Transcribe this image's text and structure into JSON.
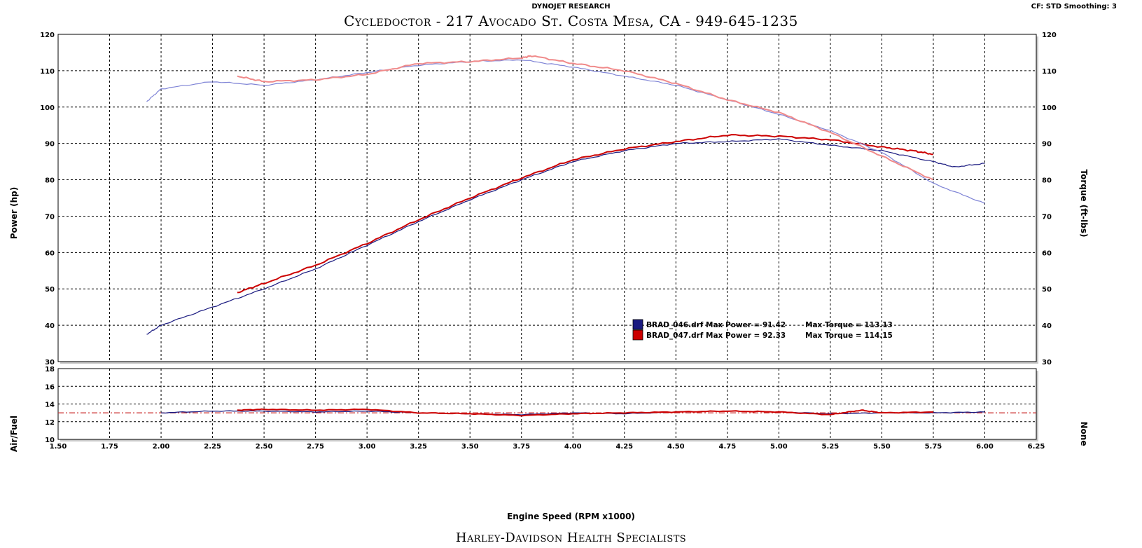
{
  "header": {
    "company": "DYNOJET RESEARCH",
    "title": "Cycledoctor - 217 Avocado St. Costa Mesa, CA - 949-645-1235",
    "settings": "CF: STD  Smoothing: 3"
  },
  "footer": {
    "text": "Harley-Davidson Health Specialists"
  },
  "colors": {
    "run1_power": "#1a1a80",
    "run1_torque": "#7f84d6",
    "run2_power": "#cc0000",
    "run2_torque": "#f08a8a",
    "reference_line": "#cc3333"
  },
  "chart_data": [
    {
      "type": "line",
      "ylabel": "Power (hp)",
      "y2label": "Torque (ft-lbs)",
      "xlim": [
        1.5,
        6.25
      ],
      "ylim": [
        30,
        120
      ],
      "y2lim": [
        30,
        120
      ],
      "grid": true,
      "x_ticks": [
        "1.50",
        "1.75",
        "2.00",
        "2.25",
        "2.50",
        "2.75",
        "3.00",
        "3.25",
        "3.50",
        "3.75",
        "4.00",
        "4.25",
        "4.50",
        "4.75",
        "5.00",
        "5.25",
        "5.50",
        "5.75",
        "6.00",
        "6.25"
      ],
      "y_ticks": [
        "30",
        "40",
        "50",
        "60",
        "70",
        "80",
        "90",
        "100",
        "110",
        "120"
      ],
      "legend": {
        "placement": "lower-center-right",
        "entries": [
          {
            "name": "BRAD_046.drf",
            "text": "BRAD_046.drf Max Power = 91.42",
            "torque_text": "Max Torque = 113.13",
            "color": "#1a1a80"
          },
          {
            "name": "BRAD_047.drf",
            "text": "BRAD_047.drf Max Power = 92.33",
            "torque_text": "Max Torque = 114.15",
            "color": "#cc0000"
          }
        ]
      },
      "series": [
        {
          "name": "BRAD_046.drf",
          "quantity": "power",
          "color": "#1a1a80",
          "x": [
            1.93,
            2.0,
            2.25,
            2.5,
            2.75,
            3.0,
            3.25,
            3.5,
            3.75,
            4.0,
            4.25,
            4.5,
            4.75,
            5.0,
            5.25,
            5.5,
            5.75,
            5.85,
            6.0
          ],
          "y": [
            37.5,
            40,
            45,
            50,
            55.5,
            62,
            68.5,
            74.5,
            80,
            85,
            88,
            90,
            90.5,
            91.2,
            89.5,
            88,
            85,
            83.5,
            84.5
          ]
        },
        {
          "name": "BRAD_047.drf",
          "quantity": "power",
          "color": "#cc0000",
          "x": [
            2.37,
            2.5,
            2.75,
            3.0,
            3.25,
            3.5,
            3.75,
            4.0,
            4.25,
            4.5,
            4.75,
            5.0,
            5.25,
            5.5,
            5.65,
            5.75
          ],
          "y": [
            49,
            51.5,
            56.5,
            62.5,
            69,
            75,
            80.5,
            85.5,
            88.5,
            90.5,
            92.3,
            92,
            91,
            89,
            88,
            87
          ]
        },
        {
          "name": "BRAD_046.drf",
          "quantity": "torque",
          "color": "#7f84d6",
          "x": [
            1.93,
            2.0,
            2.25,
            2.5,
            2.75,
            3.0,
            3.25,
            3.5,
            3.75,
            4.0,
            4.25,
            4.5,
            4.75,
            5.0,
            5.25,
            5.5,
            5.75,
            6.0
          ],
          "y": [
            101.5,
            105,
            107,
            106,
            107.5,
            109.5,
            111.5,
            112.5,
            113,
            111,
            108.5,
            106,
            102,
            98,
            93.5,
            87.5,
            79,
            73.5
          ]
        },
        {
          "name": "BRAD_047.drf",
          "quantity": "torque",
          "color": "#f08a8a",
          "x": [
            2.37,
            2.5,
            2.75,
            3.0,
            3.25,
            3.5,
            3.75,
            3.8,
            4.0,
            4.25,
            4.5,
            4.75,
            5.0,
            5.25,
            5.5,
            5.75
          ],
          "y": [
            108.5,
            107,
            107.5,
            109,
            112,
            112.5,
            113.5,
            114.1,
            112,
            110,
            106.5,
            102,
            98.5,
            93,
            86.5,
            80
          ]
        }
      ]
    },
    {
      "type": "line",
      "ylabel": "Air/Fuel",
      "y2label": "None",
      "xlabel": "Engine Speed (RPM x1000)",
      "xlim": [
        1.5,
        6.25
      ],
      "ylim": [
        10,
        18
      ],
      "grid": true,
      "y_ticks": [
        "10",
        "12",
        "14",
        "16",
        "18"
      ],
      "reference_line": 13.0,
      "series": [
        {
          "name": "BRAD_046.drf",
          "color": "#1a1a80",
          "x": [
            2.0,
            2.25,
            2.5,
            2.75,
            3.0,
            3.25,
            3.5,
            3.75,
            4.0,
            4.25,
            4.5,
            4.75,
            5.0,
            5.25,
            5.5,
            5.75,
            6.0
          ],
          "y": [
            13.0,
            13.2,
            13.2,
            13.1,
            13.2,
            13.0,
            12.9,
            12.8,
            13.0,
            12.9,
            13.1,
            13.2,
            13.1,
            12.9,
            13.0,
            13.0,
            13.1
          ]
        },
        {
          "name": "BRAD_047.drf",
          "color": "#cc0000",
          "x": [
            2.37,
            2.5,
            2.75,
            3.0,
            3.25,
            3.5,
            3.75,
            4.0,
            4.25,
            4.5,
            4.75,
            5.0,
            5.25,
            5.4,
            5.5,
            5.75
          ],
          "y": [
            13.3,
            13.4,
            13.3,
            13.4,
            13.0,
            12.9,
            12.7,
            12.9,
            13.0,
            13.1,
            13.2,
            13.1,
            12.8,
            13.3,
            13.0,
            13.1
          ]
        }
      ]
    }
  ]
}
